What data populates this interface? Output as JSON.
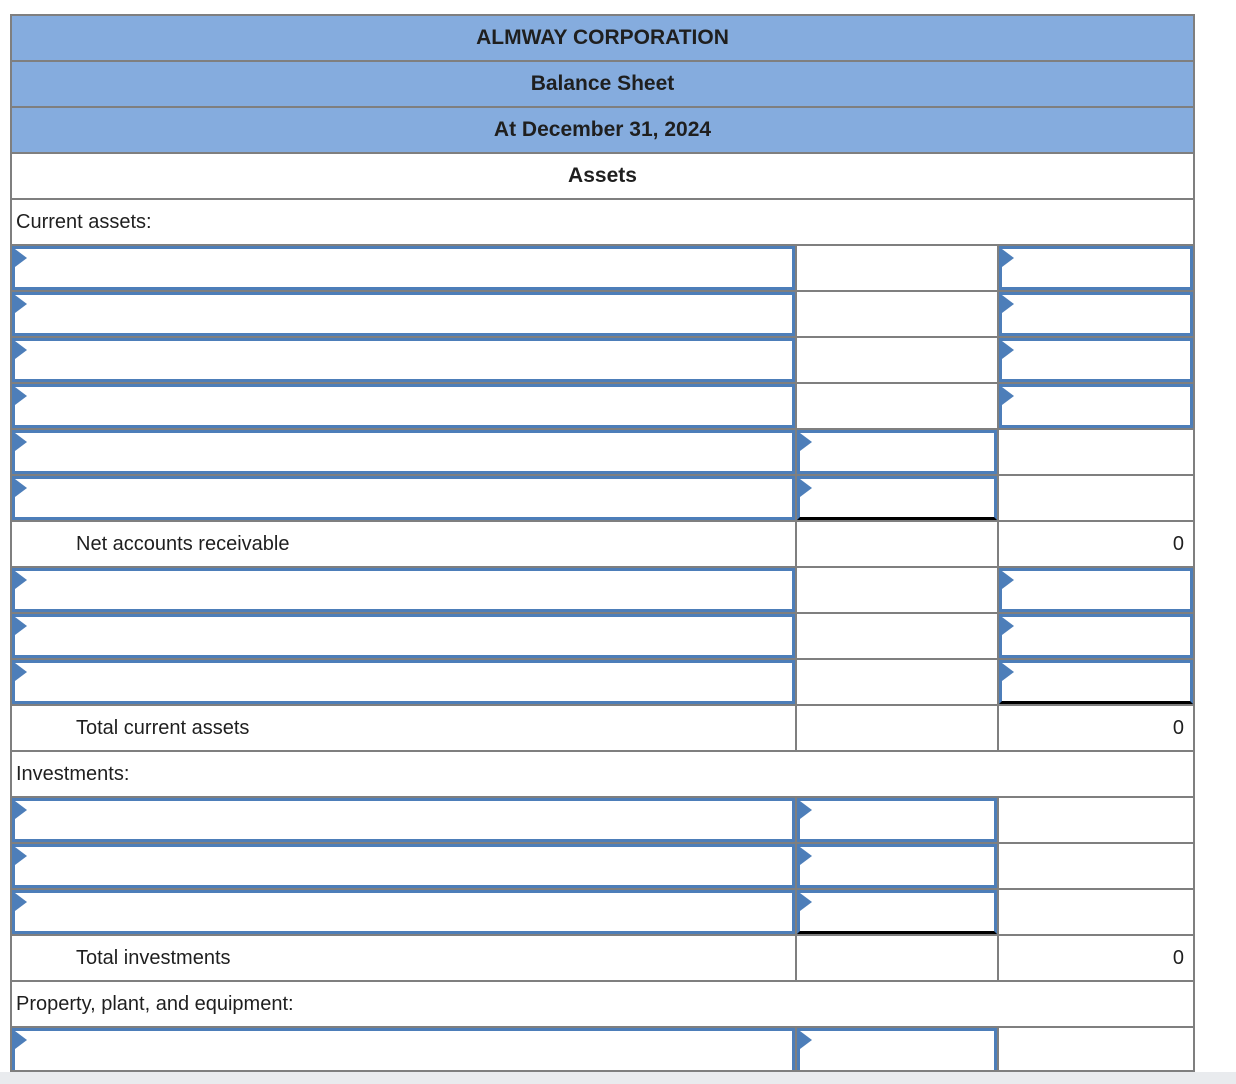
{
  "document": {
    "company": "ALMWAY CORPORATION",
    "title": "Balance Sheet",
    "date": "At December 31, 2024",
    "section": "Assets"
  },
  "labels": {
    "current_assets": "Current assets:",
    "net_accounts_receivable": "Net accounts receivable",
    "total_current_assets": "Total current assets",
    "investments": "Investments:",
    "total_investments": "Total investments",
    "ppe": "Property, plant, and equipment:"
  },
  "values": {
    "net_accounts_receivable": "0",
    "total_current_assets": "0",
    "total_investments": "0"
  },
  "colors": {
    "header_fill": "#85ACDE",
    "grid_line": "#7f7f7f",
    "input_border": "#4D7EB9",
    "total_rule": "#000000",
    "page_strip": "#E9EBEE"
  },
  "icons": {
    "answer_flag": "right-pointing-triangle"
  }
}
